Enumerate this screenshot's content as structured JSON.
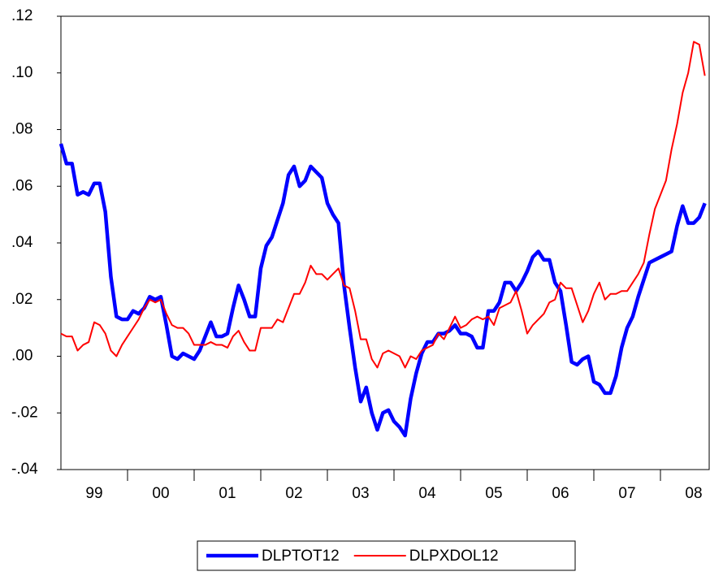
{
  "chart_data": {
    "type": "line",
    "categories": [
      "99",
      null,
      null,
      null,
      null,
      null,
      null,
      null,
      null,
      null,
      null,
      null,
      "00",
      null,
      null,
      null,
      null,
      null,
      null,
      null,
      null,
      null,
      null,
      null,
      "01",
      null,
      null,
      null,
      null,
      null,
      null,
      null,
      null,
      null,
      null,
      null,
      "02",
      null,
      null,
      null,
      null,
      null,
      null,
      null,
      null,
      null,
      null,
      null,
      "03",
      null,
      null,
      null,
      null,
      null,
      null,
      null,
      null,
      null,
      null,
      null,
      "04",
      null,
      null,
      null,
      null,
      null,
      null,
      null,
      null,
      null,
      null,
      null,
      "05",
      null,
      null,
      null,
      null,
      null,
      null,
      null,
      null,
      null,
      null,
      null,
      "06",
      null,
      null,
      null,
      null,
      null,
      null,
      null,
      null,
      null,
      null,
      null,
      "07",
      null,
      null,
      null,
      null,
      null,
      null,
      null,
      null,
      null,
      null,
      null,
      "08",
      null,
      null,
      null,
      null,
      null,
      null,
      null,
      null
    ],
    "series": [
      {
        "name": "DLPTOT12",
        "color": "#0000ff",
        "width": 4.5,
        "values": [
          0.075,
          0.068,
          0.068,
          0.057,
          0.058,
          0.057,
          0.061,
          0.061,
          0.051,
          0.028,
          0.014,
          0.013,
          0.013,
          0.016,
          0.015,
          0.017,
          0.021,
          0.02,
          0.021,
          0.011,
          0.0,
          -0.001,
          0.001,
          0.0,
          -0.001,
          0.002,
          0.007,
          0.012,
          0.007,
          0.007,
          0.008,
          0.017,
          0.025,
          0.02,
          0.014,
          0.014,
          0.031,
          0.039,
          0.042,
          0.048,
          0.054,
          0.064,
          0.067,
          0.06,
          0.062,
          0.067,
          0.065,
          0.063,
          0.054,
          0.05,
          0.047,
          0.025,
          0.01,
          -0.004,
          -0.016,
          -0.011,
          -0.02,
          -0.026,
          -0.02,
          -0.019,
          -0.023,
          -0.025,
          -0.028,
          -0.015,
          -0.006,
          0.001,
          0.005,
          0.005,
          0.008,
          0.008,
          0.009,
          0.011,
          0.008,
          0.008,
          0.007,
          0.003,
          0.003,
          0.016,
          0.016,
          0.019,
          0.026,
          0.026,
          0.023,
          0.026,
          0.03,
          0.035,
          0.037,
          0.034,
          0.034,
          0.026,
          0.023,
          0.011,
          -0.002,
          -0.003,
          -0.001,
          0.0,
          -0.009,
          -0.01,
          -0.013,
          -0.013,
          -0.007,
          0.003,
          0.01,
          0.014,
          0.021,
          0.027,
          0.033,
          0.034,
          0.035,
          0.036,
          0.037,
          0.046,
          0.053,
          0.047,
          0.047,
          0.049,
          0.054
        ]
      },
      {
        "name": "DLPXDOL12",
        "color": "#ff0000",
        "width": 2,
        "values": [
          0.008,
          0.007,
          0.007,
          0.002,
          0.004,
          0.005,
          0.012,
          0.011,
          0.008,
          0.002,
          0.0,
          0.004,
          0.007,
          0.01,
          0.013,
          0.017,
          0.02,
          0.019,
          0.02,
          0.015,
          0.011,
          0.01,
          0.01,
          0.008,
          0.004,
          0.004,
          0.004,
          0.005,
          0.004,
          0.004,
          0.003,
          0.007,
          0.009,
          0.005,
          0.002,
          0.002,
          0.01,
          0.01,
          0.01,
          0.013,
          0.012,
          0.017,
          0.022,
          0.022,
          0.026,
          0.032,
          0.029,
          0.029,
          0.027,
          0.029,
          0.031,
          0.025,
          0.024,
          0.016,
          0.006,
          0.006,
          -0.001,
          -0.004,
          0.001,
          0.002,
          0.001,
          0.0,
          -0.004,
          0.0,
          -0.001,
          0.002,
          0.003,
          0.004,
          0.008,
          0.006,
          0.01,
          0.014,
          0.01,
          0.011,
          0.013,
          0.014,
          0.013,
          0.014,
          0.011,
          0.017,
          0.018,
          0.019,
          0.023,
          0.016,
          0.008,
          0.011,
          0.013,
          0.015,
          0.019,
          0.02,
          0.026,
          0.024,
          0.024,
          0.018,
          0.012,
          0.016,
          0.022,
          0.026,
          0.02,
          0.022,
          0.022,
          0.023,
          0.023,
          0.026,
          0.029,
          0.033,
          0.043,
          0.052,
          0.057,
          0.062,
          0.073,
          0.082,
          0.093,
          0.1,
          0.111,
          0.11,
          0.099
        ]
      }
    ],
    "ylim": [
      -0.04,
      0.12
    ],
    "yticks": [
      {
        "value": -0.04,
        "label": "-.04"
      },
      {
        "value": -0.02,
        "label": "-.02"
      },
      {
        "value": 0,
        "label": ".00"
      },
      {
        "value": 0.02,
        "label": ".02"
      },
      {
        "value": 0.04,
        "label": ".04"
      },
      {
        "value": 0.06,
        "label": ".06"
      },
      {
        "value": 0.08,
        "label": ".08"
      },
      {
        "value": 0.1,
        "label": ".10"
      },
      {
        "value": 0.12,
        "label": ".12"
      }
    ],
    "legend": "bottom"
  }
}
